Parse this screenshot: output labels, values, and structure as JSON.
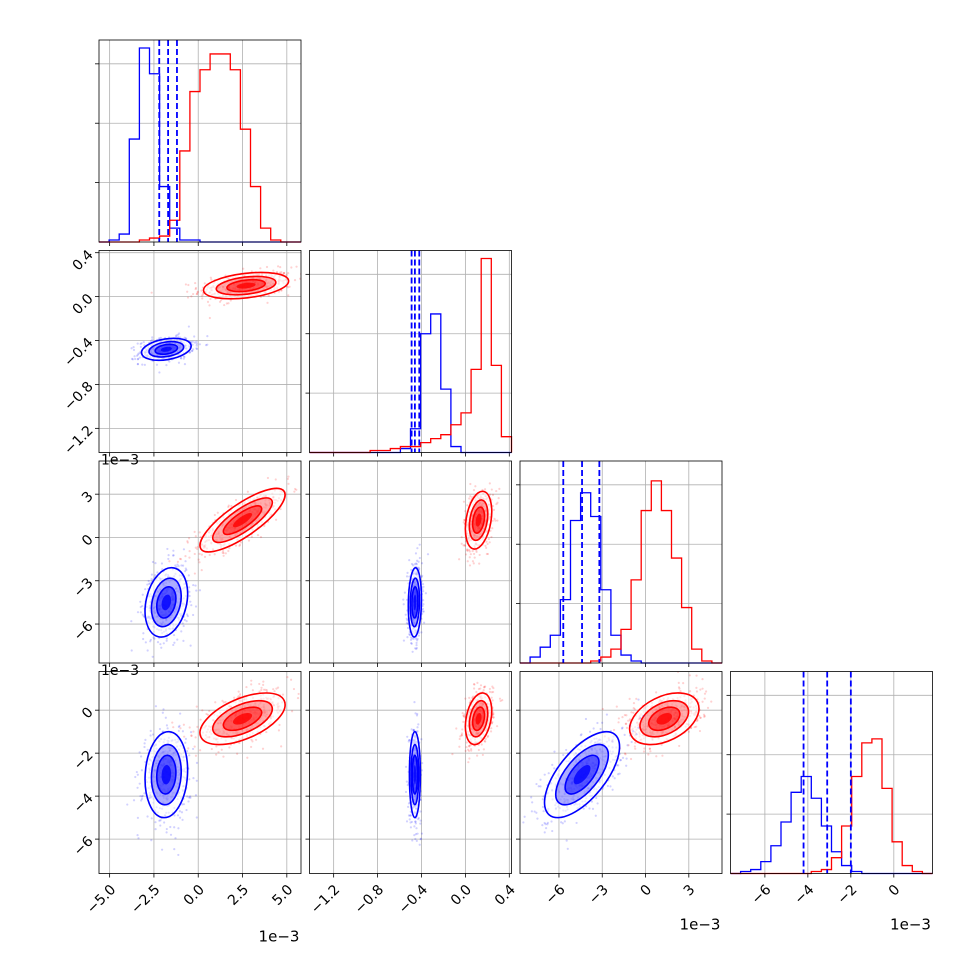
{
  "colors": {
    "blue": "#0000ff",
    "red": "#ff0000",
    "grid": "#b0b0b0",
    "axis": "#000000"
  },
  "chart_data": {
    "type": "corner",
    "series": [
      {
        "color": "#0000ff",
        "quantiles": [
          [
            -0.0022,
            -0.0017,
            -0.0012
          ],
          [
            -0.49,
            -0.46,
            -0.42
          ],
          [
            -0.0057,
            -0.0044,
            -0.0032
          ],
          [
            -0.0042,
            -0.0031,
            -0.002
          ]
        ]
      },
      {
        "color": "#ff0000"
      }
    ],
    "dims": [
      {
        "range": [
          -0.0056,
          0.0058
        ],
        "ticks": [
          -0.005,
          -0.0025,
          0,
          0.0025,
          0.005
        ],
        "tick_labels": [
          "−5.0",
          "−2.5",
          "0.0",
          "2.5",
          "5.0"
        ],
        "offset_label": "1e−3",
        "hist": {
          "blue": [
            0,
            1,
            4,
            52,
            98,
            85,
            28,
            7,
            1,
            1,
            0,
            0,
            0,
            0,
            0,
            0,
            0,
            0,
            0,
            0
          ],
          "red": [
            0,
            0,
            0,
            0,
            1,
            2,
            3,
            11,
            46,
            76,
            87,
            95,
            95,
            87,
            57,
            28,
            7,
            1,
            0,
            0
          ]
        }
      },
      {
        "range": [
          -1.42,
          0.42
        ],
        "ticks": [
          -1.2,
          -0.8,
          -0.4,
          0.0,
          0.4
        ],
        "tick_labels": [
          "−1.2",
          "−0.8",
          "−0.4",
          "0.0",
          "0.4"
        ],
        "hist": {
          "blue": [
            0,
            0,
            0,
            0,
            0,
            0,
            0,
            0,
            0,
            2,
            12,
            60,
            70,
            32,
            3,
            0,
            0,
            0,
            0,
            0
          ],
          "red": [
            0,
            0,
            0,
            0,
            0,
            0,
            1,
            1,
            2,
            3,
            3,
            5,
            7,
            9,
            14,
            20,
            42,
            98,
            44,
            8
          ]
        }
      },
      {
        "range": [
          -0.0087,
          0.0053
        ],
        "ticks": [
          -0.006,
          -0.003,
          0,
          0.003
        ],
        "tick_labels": [
          "−6",
          "−3",
          "0",
          "3"
        ],
        "offset_label": "1e−3",
        "hist": {
          "blue": [
            0,
            3,
            8,
            14,
            32,
            72,
            86,
            74,
            37,
            14,
            4,
            1,
            0,
            0,
            0,
            0,
            0,
            0,
            0,
            0
          ],
          "red": [
            0,
            0,
            0,
            0,
            0,
            0,
            0,
            1,
            3,
            7,
            17,
            42,
            77,
            92,
            77,
            53,
            28,
            7,
            1,
            0
          ]
        }
      },
      {
        "range": [
          -0.0076,
          0.0018
        ],
        "ticks": [
          -0.006,
          -0.004,
          -0.002,
          0
        ],
        "tick_labels": [
          "−6",
          "−4",
          "−2",
          "0"
        ],
        "offset_label": "1e−3",
        "hist": {
          "blue": [
            0,
            1,
            2,
            6,
            14,
            26,
            41,
            49,
            38,
            24,
            11,
            4,
            1,
            0,
            0,
            0,
            0,
            0,
            0,
            0
          ],
          "red": [
            0,
            0,
            0,
            0,
            0,
            0,
            0,
            0,
            1,
            2,
            8,
            24,
            49,
            66,
            68,
            43,
            16,
            4,
            1,
            0
          ]
        }
      }
    ],
    "blobs": {
      "blue": [
        {
          "pair": [
            0,
            1
          ],
          "center": [
            -0.0018,
            -0.48
          ],
          "sd": [
            0.0007,
            0.05
          ],
          "rho": 0.3
        },
        {
          "pair": [
            0,
            2
          ],
          "center": [
            -0.0018,
            -0.0045
          ],
          "sd": [
            0.0006,
            0.0012
          ],
          "rho": 0.25
        },
        {
          "pair": [
            0,
            3
          ],
          "center": [
            -0.0018,
            -0.003
          ],
          "sd": [
            0.0006,
            0.001
          ],
          "rho": 0.1
        },
        {
          "pair": [
            1,
            2
          ],
          "center": [
            -0.46,
            -0.0045
          ],
          "sd": [
            0.03,
            0.0012
          ],
          "rho": 0.1
        },
        {
          "pair": [
            1,
            3
          ],
          "center": [
            -0.46,
            -0.003
          ],
          "sd": [
            0.025,
            0.001
          ],
          "rho": 0.0
        },
        {
          "pair": [
            2,
            3
          ],
          "center": [
            -0.0044,
            -0.003
          ],
          "sd": [
            0.0013,
            0.001
          ],
          "rho": 0.65
        }
      ],
      "red": [
        {
          "pair": [
            0,
            1
          ],
          "center": [
            0.0027,
            0.1
          ],
          "sd": [
            0.0012,
            0.06
          ],
          "rho": 0.35
        },
        {
          "pair": [
            0,
            2
          ],
          "center": [
            0.0025,
            0.0012
          ],
          "sd": [
            0.0012,
            0.0011
          ],
          "rho": 0.8
        },
        {
          "pair": [
            0,
            3
          ],
          "center": [
            0.0025,
            -0.0004
          ],
          "sd": [
            0.0012,
            0.0006
          ],
          "rho": 0.55
        },
        {
          "pair": [
            1,
            2
          ],
          "center": [
            0.12,
            0.0012
          ],
          "sd": [
            0.06,
            0.001
          ],
          "rho": 0.3
        },
        {
          "pair": [
            1,
            3
          ],
          "center": [
            0.12,
            -0.0004
          ],
          "sd": [
            0.06,
            0.0006
          ],
          "rho": 0.3
        },
        {
          "pair": [
            2,
            3
          ],
          "center": [
            0.0013,
            -0.0004
          ],
          "sd": [
            0.0012,
            0.0006
          ],
          "rho": 0.4
        }
      ]
    }
  }
}
